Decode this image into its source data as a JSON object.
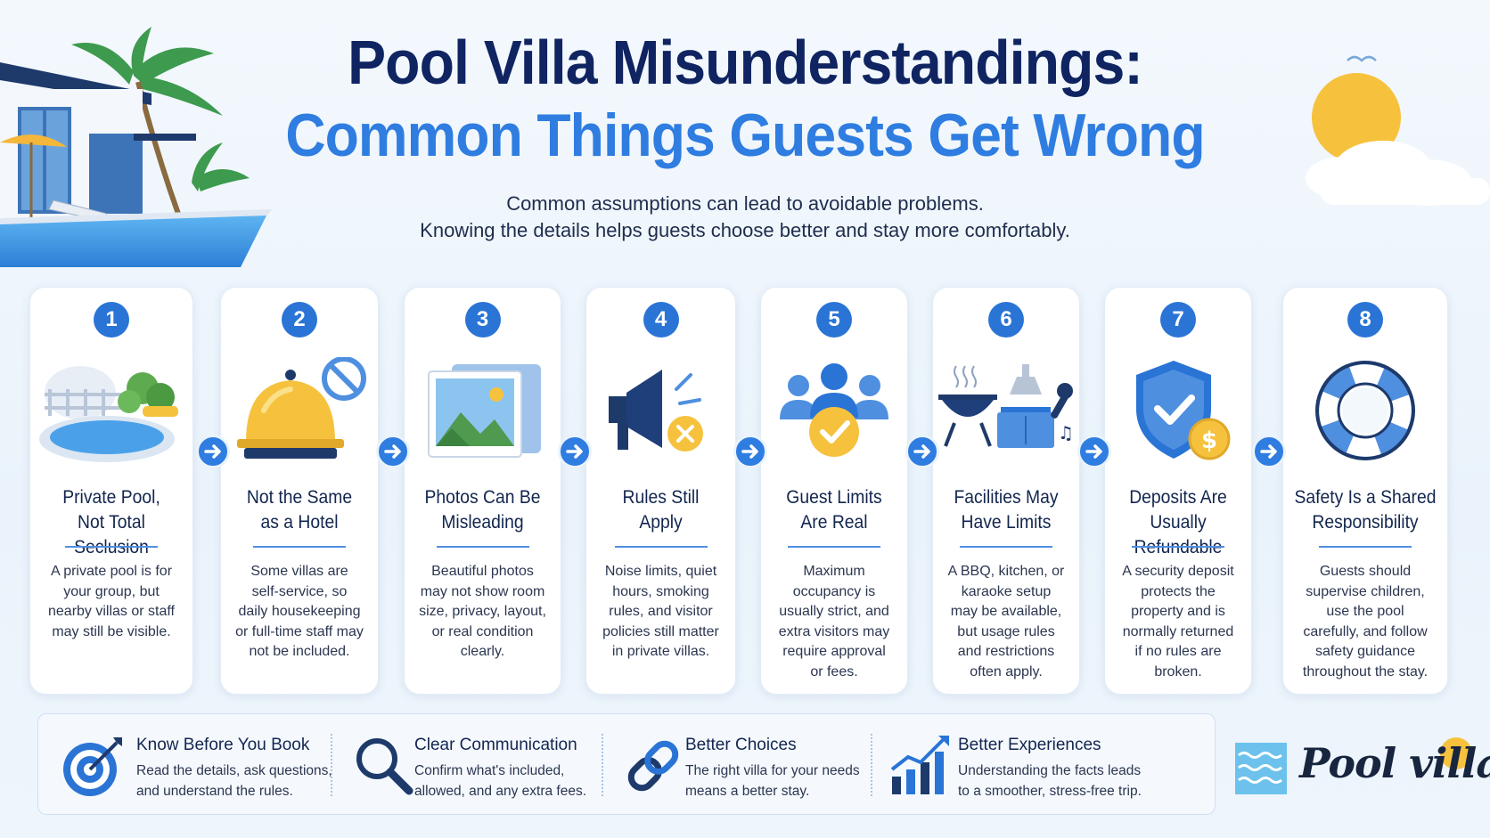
{
  "header": {
    "title_line1": "Pool Villa Misunderstandings:",
    "title_line2": "Common Things Guests Get Wrong",
    "subtitle_line1": "Common assumptions can lead to avoidable problems.",
    "subtitle_line2": "Knowing the details helps guests choose better and stay more comfortably."
  },
  "cards": [
    {
      "number": "1",
      "title_line1": "Private Pool,",
      "title_line2": "Not Total Seclusion",
      "body": "A private pool is for your group, but nearby villas or staff may still be visible.",
      "icon": "private-pool-icon"
    },
    {
      "number": "2",
      "title_line1": "Not the Same",
      "title_line2": "as a Hotel",
      "body": "Some villas are self-service, so daily housekeeping or full-time staff may not be included.",
      "icon": "service-bell-icon"
    },
    {
      "number": "3",
      "title_line1": "Photos Can Be",
      "title_line2": "Misleading",
      "body": "Beautiful photos may not show room size, privacy, layout, or real condition clearly.",
      "icon": "photos-icon"
    },
    {
      "number": "4",
      "title_line1": "Rules Still",
      "title_line2": "Apply",
      "body": "Noise limits, quiet hours, smoking rules, and visitor policies still matter in private villas.",
      "icon": "megaphone-icon"
    },
    {
      "number": "5",
      "title_line1": "Guest Limits",
      "title_line2": "Are Real",
      "body": "Maximum occupancy is usually strict, and extra visitors may require approval or fees.",
      "icon": "guests-check-icon"
    },
    {
      "number": "6",
      "title_line1": "Facilities May",
      "title_line2": "Have Limits",
      "body": "A BBQ, kitchen, or karaoke setup may be available, but usage rules and restrictions often apply.",
      "icon": "facilities-icon"
    },
    {
      "number": "7",
      "title_line1": "Deposits Are",
      "title_line2": "Usually Refundable",
      "body": "A security deposit protects the property and is normally returned if no rules are broken.",
      "icon": "shield-deposit-icon"
    },
    {
      "number": "8",
      "title_line1": "Safety Is a Shared",
      "title_line2": "Responsibility",
      "body": "Guests should supervise children, use the pool carefully, and follow safety guidance throughout the stay.",
      "icon": "lifebuoy-icon"
    }
  ],
  "footer": [
    {
      "title": "Know Before You Book",
      "desc_line1": "Read the details, ask questions,",
      "desc_line2": "and understand the rules.",
      "icon": "target-icon"
    },
    {
      "title": "Clear Communication",
      "desc_line1": "Confirm what's included,",
      "desc_line2": "allowed, and any extra fees.",
      "icon": "magnifier-icon"
    },
    {
      "title": "Better Choices",
      "desc_line1": "The right villa for your needs",
      "desc_line2": "means a better stay.",
      "icon": "link-icon"
    },
    {
      "title": "Better Experiences",
      "desc_line1": "Understanding the facts leads",
      "desc_line2": "to a smoother, stress-free trip.",
      "icon": "growth-chart-icon"
    }
  ],
  "logo": {
    "text": "Pool villa"
  },
  "colors": {
    "navy": "#0f2461",
    "accent_blue": "#2f7de0",
    "number_blue": "#2a74d6",
    "sun_yellow": "#f6c23e"
  }
}
